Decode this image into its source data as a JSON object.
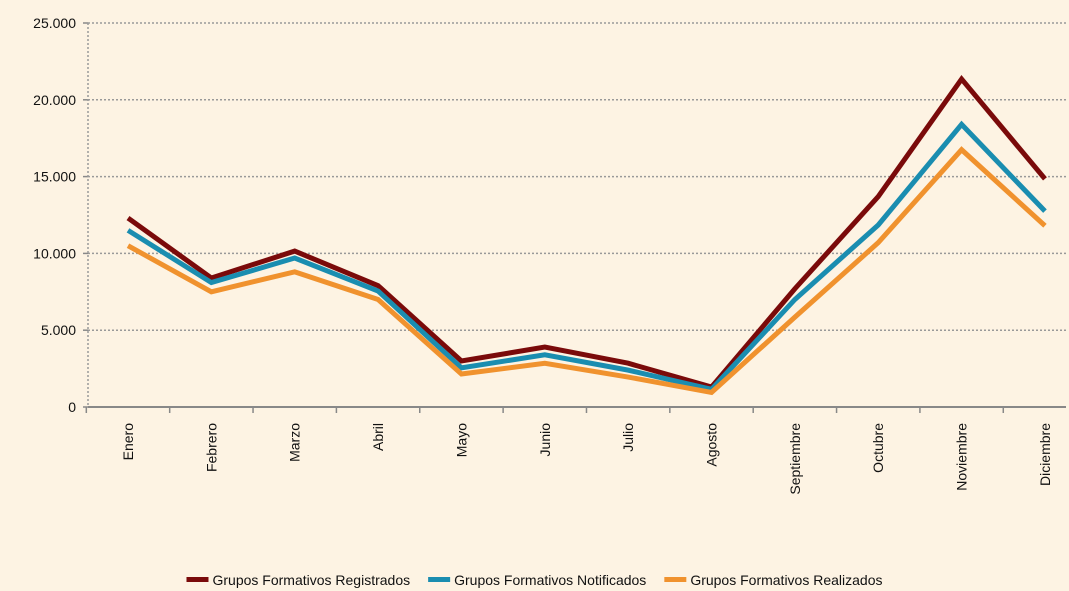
{
  "chart_data": {
    "type": "line",
    "categories": [
      "Enero",
      "Febrero",
      "Marzo",
      "Abril",
      "Mayo",
      "Junio",
      "Julio",
      "Agosto",
      "Septiembre",
      "Octubre",
      "Noviembre",
      "Diciembre"
    ],
    "series": [
      {
        "name": "Grupos Formativos Registrados",
        "color": "#7a0a0a",
        "values": [
          12300,
          8400,
          10150,
          7900,
          3000,
          3900,
          2850,
          1300,
          7700,
          13700,
          21350,
          14850
        ]
      },
      {
        "name": "Grupos Formativos Notificados",
        "color": "#1a8db0",
        "values": [
          11500,
          8100,
          9700,
          7550,
          2550,
          3400,
          2400,
          1150,
          7000,
          11850,
          18400,
          12750
        ]
      },
      {
        "name": "Grupos Formativos Realizados",
        "color": "#f0922e",
        "values": [
          10500,
          7500,
          8800,
          7000,
          2150,
          2850,
          1950,
          950,
          5850,
          10700,
          16750,
          11800
        ]
      }
    ],
    "ylim": [
      0,
      25000
    ],
    "yticks": [
      0,
      {
        "value": 5000,
        "label": "5.000"
      },
      {
        "value": 10000,
        "label": "10.000"
      },
      {
        "value": 15000,
        "label": "15.000"
      },
      {
        "value": 20000,
        "label": "20.000"
      },
      {
        "value": 25000,
        "label": "25.000"
      }
    ],
    "grid": true,
    "legend": "bottom"
  }
}
